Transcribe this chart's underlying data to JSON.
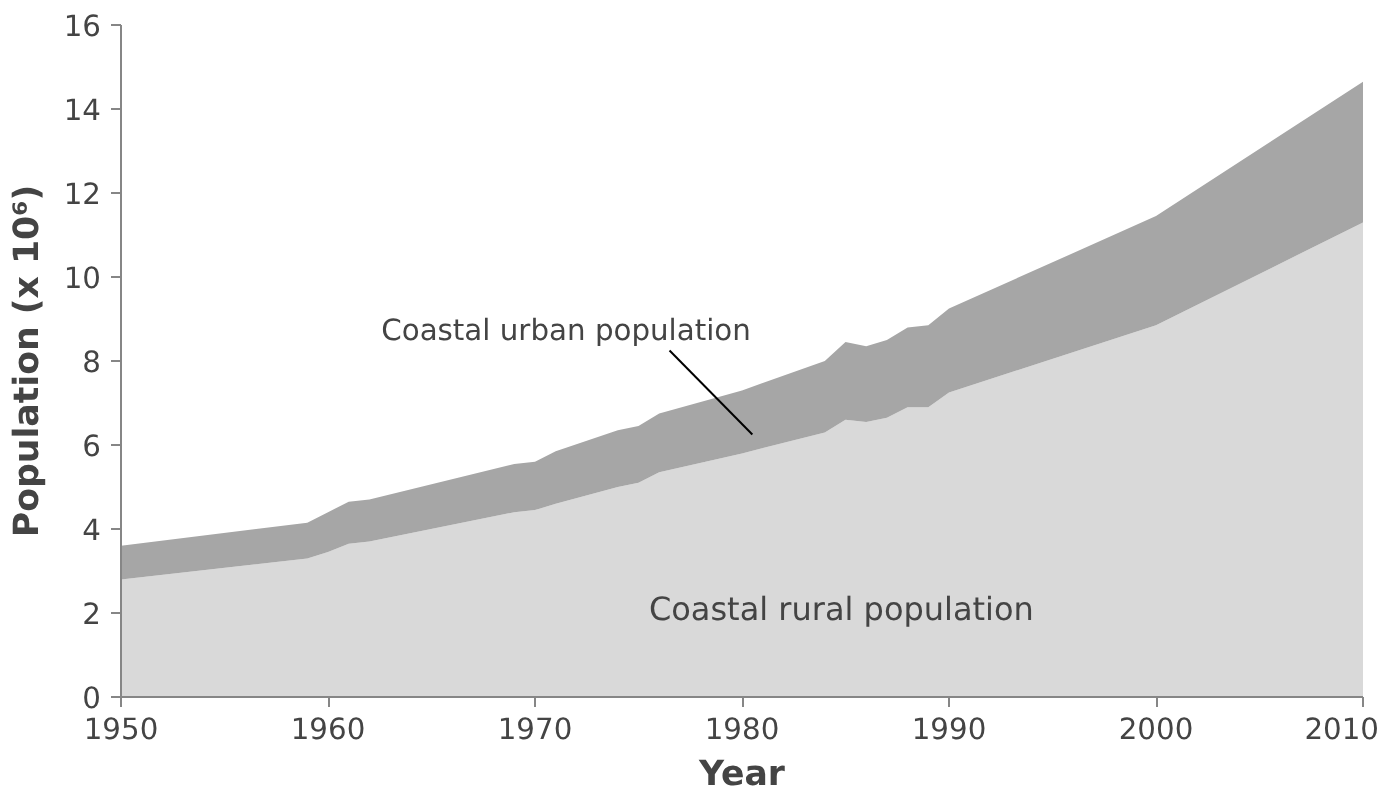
{
  "chart_data": {
    "type": "area",
    "stacked": true,
    "xlabel": "Year",
    "ylabel": "Population (x 10⁶)",
    "x": [
      1950,
      1959,
      1960,
      1961,
      1962,
      1969,
      1970,
      1971,
      1974,
      1975,
      1976,
      1980,
      1984,
      1985,
      1986,
      1987,
      1988,
      1989,
      1990,
      2000,
      2010
    ],
    "series": [
      {
        "name": "Coastal rural population",
        "color": "#d9d9d9",
        "values": [
          2.8,
          3.3,
          3.45,
          3.65,
          3.7,
          4.4,
          4.45,
          4.6,
          5.0,
          5.1,
          5.35,
          5.8,
          6.3,
          6.6,
          6.55,
          6.65,
          6.9,
          6.9,
          7.25,
          8.85,
          11.3
        ]
      },
      {
        "name": "Coastal urban population",
        "color": "#a6a6a6",
        "values": [
          0.8,
          0.85,
          0.95,
          1.0,
          1.0,
          1.15,
          1.15,
          1.25,
          1.35,
          1.35,
          1.4,
          1.5,
          1.7,
          1.85,
          1.8,
          1.85,
          1.9,
          1.95,
          2.0,
          2.6,
          3.35
        ]
      }
    ],
    "xlim": [
      1950,
      2010
    ],
    "ylim": [
      0,
      16
    ],
    "xticks": [
      1950,
      1960,
      1970,
      1980,
      1990,
      2000,
      2010
    ],
    "yticks": [
      0,
      2,
      4,
      6,
      8,
      10,
      12,
      14,
      16
    ],
    "grid": false
  }
}
